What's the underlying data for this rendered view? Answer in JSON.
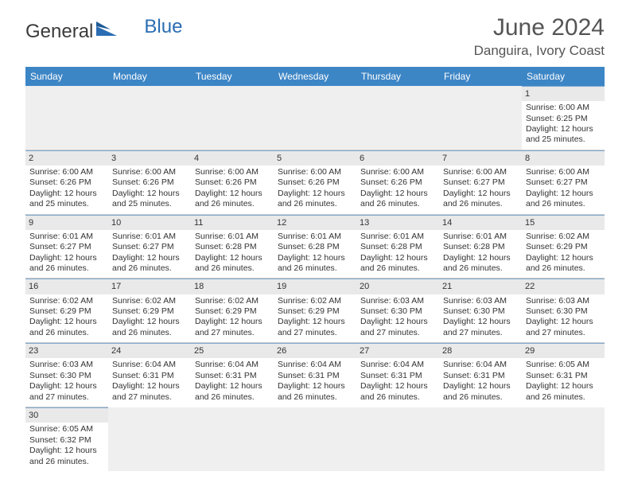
{
  "brand": {
    "part1": "General",
    "part2": "Blue"
  },
  "title": {
    "month": "June 2024",
    "location": "Danguira, Ivory Coast"
  },
  "colors": {
    "header_bg": "#3d86c6",
    "header_text": "#ffffff",
    "daynum_bg": "#e9e9e9",
    "daynum_border": "#7fa9d0",
    "cell_border": "#cccccc",
    "blank_bg": "#efefef",
    "text": "#333333",
    "brand_blue": "#2a6db3"
  },
  "weekdays": [
    "Sunday",
    "Monday",
    "Tuesday",
    "Wednesday",
    "Thursday",
    "Friday",
    "Saturday"
  ],
  "days": {
    "1": {
      "sunrise": "Sunrise: 6:00 AM",
      "sunset": "Sunset: 6:25 PM",
      "daylight": "Daylight: 12 hours and 25 minutes."
    },
    "2": {
      "sunrise": "Sunrise: 6:00 AM",
      "sunset": "Sunset: 6:26 PM",
      "daylight": "Daylight: 12 hours and 25 minutes."
    },
    "3": {
      "sunrise": "Sunrise: 6:00 AM",
      "sunset": "Sunset: 6:26 PM",
      "daylight": "Daylight: 12 hours and 25 minutes."
    },
    "4": {
      "sunrise": "Sunrise: 6:00 AM",
      "sunset": "Sunset: 6:26 PM",
      "daylight": "Daylight: 12 hours and 26 minutes."
    },
    "5": {
      "sunrise": "Sunrise: 6:00 AM",
      "sunset": "Sunset: 6:26 PM",
      "daylight": "Daylight: 12 hours and 26 minutes."
    },
    "6": {
      "sunrise": "Sunrise: 6:00 AM",
      "sunset": "Sunset: 6:26 PM",
      "daylight": "Daylight: 12 hours and 26 minutes."
    },
    "7": {
      "sunrise": "Sunrise: 6:00 AM",
      "sunset": "Sunset: 6:27 PM",
      "daylight": "Daylight: 12 hours and 26 minutes."
    },
    "8": {
      "sunrise": "Sunrise: 6:00 AM",
      "sunset": "Sunset: 6:27 PM",
      "daylight": "Daylight: 12 hours and 26 minutes."
    },
    "9": {
      "sunrise": "Sunrise: 6:01 AM",
      "sunset": "Sunset: 6:27 PM",
      "daylight": "Daylight: 12 hours and 26 minutes."
    },
    "10": {
      "sunrise": "Sunrise: 6:01 AM",
      "sunset": "Sunset: 6:27 PM",
      "daylight": "Daylight: 12 hours and 26 minutes."
    },
    "11": {
      "sunrise": "Sunrise: 6:01 AM",
      "sunset": "Sunset: 6:28 PM",
      "daylight": "Daylight: 12 hours and 26 minutes."
    },
    "12": {
      "sunrise": "Sunrise: 6:01 AM",
      "sunset": "Sunset: 6:28 PM",
      "daylight": "Daylight: 12 hours and 26 minutes."
    },
    "13": {
      "sunrise": "Sunrise: 6:01 AM",
      "sunset": "Sunset: 6:28 PM",
      "daylight": "Daylight: 12 hours and 26 minutes."
    },
    "14": {
      "sunrise": "Sunrise: 6:01 AM",
      "sunset": "Sunset: 6:28 PM",
      "daylight": "Daylight: 12 hours and 26 minutes."
    },
    "15": {
      "sunrise": "Sunrise: 6:02 AM",
      "sunset": "Sunset: 6:29 PM",
      "daylight": "Daylight: 12 hours and 26 minutes."
    },
    "16": {
      "sunrise": "Sunrise: 6:02 AM",
      "sunset": "Sunset: 6:29 PM",
      "daylight": "Daylight: 12 hours and 26 minutes."
    },
    "17": {
      "sunrise": "Sunrise: 6:02 AM",
      "sunset": "Sunset: 6:29 PM",
      "daylight": "Daylight: 12 hours and 26 minutes."
    },
    "18": {
      "sunrise": "Sunrise: 6:02 AM",
      "sunset": "Sunset: 6:29 PM",
      "daylight": "Daylight: 12 hours and 27 minutes."
    },
    "19": {
      "sunrise": "Sunrise: 6:02 AM",
      "sunset": "Sunset: 6:29 PM",
      "daylight": "Daylight: 12 hours and 27 minutes."
    },
    "20": {
      "sunrise": "Sunrise: 6:03 AM",
      "sunset": "Sunset: 6:30 PM",
      "daylight": "Daylight: 12 hours and 27 minutes."
    },
    "21": {
      "sunrise": "Sunrise: 6:03 AM",
      "sunset": "Sunset: 6:30 PM",
      "daylight": "Daylight: 12 hours and 27 minutes."
    },
    "22": {
      "sunrise": "Sunrise: 6:03 AM",
      "sunset": "Sunset: 6:30 PM",
      "daylight": "Daylight: 12 hours and 27 minutes."
    },
    "23": {
      "sunrise": "Sunrise: 6:03 AM",
      "sunset": "Sunset: 6:30 PM",
      "daylight": "Daylight: 12 hours and 27 minutes."
    },
    "24": {
      "sunrise": "Sunrise: 6:04 AM",
      "sunset": "Sunset: 6:31 PM",
      "daylight": "Daylight: 12 hours and 27 minutes."
    },
    "25": {
      "sunrise": "Sunrise: 6:04 AM",
      "sunset": "Sunset: 6:31 PM",
      "daylight": "Daylight: 12 hours and 26 minutes."
    },
    "26": {
      "sunrise": "Sunrise: 6:04 AM",
      "sunset": "Sunset: 6:31 PM",
      "daylight": "Daylight: 12 hours and 26 minutes."
    },
    "27": {
      "sunrise": "Sunrise: 6:04 AM",
      "sunset": "Sunset: 6:31 PM",
      "daylight": "Daylight: 12 hours and 26 minutes."
    },
    "28": {
      "sunrise": "Sunrise: 6:04 AM",
      "sunset": "Sunset: 6:31 PM",
      "daylight": "Daylight: 12 hours and 26 minutes."
    },
    "29": {
      "sunrise": "Sunrise: 6:05 AM",
      "sunset": "Sunset: 6:31 PM",
      "daylight": "Daylight: 12 hours and 26 minutes."
    },
    "30": {
      "sunrise": "Sunrise: 6:05 AM",
      "sunset": "Sunset: 6:32 PM",
      "daylight": "Daylight: 12 hours and 26 minutes."
    }
  },
  "layout": {
    "weeks": [
      [
        null,
        null,
        null,
        null,
        null,
        null,
        "1"
      ],
      [
        "2",
        "3",
        "4",
        "5",
        "6",
        "7",
        "8"
      ],
      [
        "9",
        "10",
        "11",
        "12",
        "13",
        "14",
        "15"
      ],
      [
        "16",
        "17",
        "18",
        "19",
        "20",
        "21",
        "22"
      ],
      [
        "23",
        "24",
        "25",
        "26",
        "27",
        "28",
        "29"
      ],
      [
        "30",
        null,
        null,
        null,
        null,
        null,
        null
      ]
    ]
  }
}
